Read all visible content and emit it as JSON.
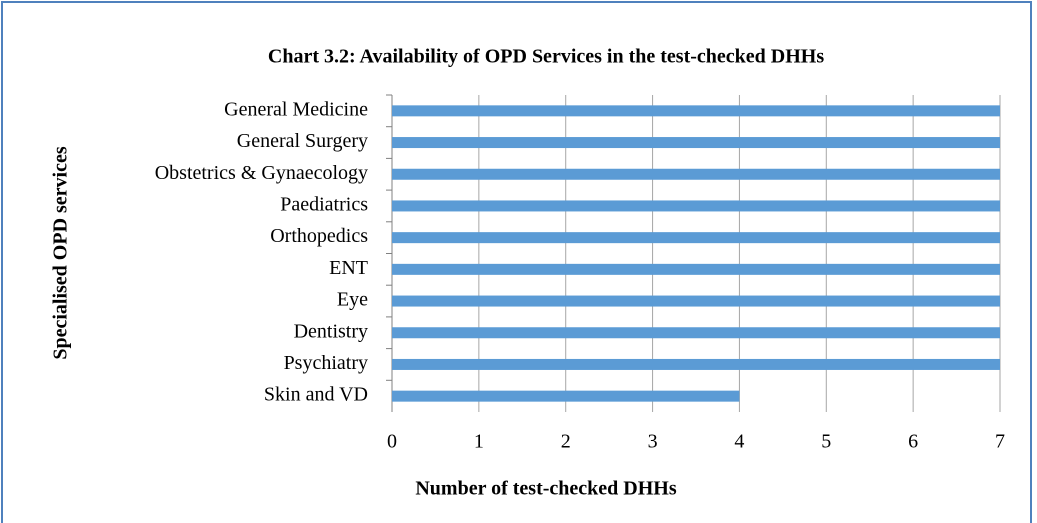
{
  "chart_data": {
    "type": "bar",
    "orientation": "horizontal",
    "title": "Chart 3.2: Availability of OPD Services in the test-checked DHHs",
    "x_label": "Number of test-checked DHHs",
    "y_label": "Specialised OPD services",
    "categories": [
      "General Medicine",
      "General Surgery",
      "Obstetrics & Gynaecology",
      "Paediatrics",
      "Orthopedics",
      "ENT",
      "Eye",
      "Dentistry",
      "Psychiatry",
      "Skin and VD"
    ],
    "values": [
      7,
      7,
      7,
      7,
      7,
      7,
      7,
      7,
      7,
      4
    ],
    "color": "#5b9bd5",
    "xlim": [
      0,
      7
    ],
    "xticks": [
      0,
      1,
      2,
      3,
      4,
      5,
      6,
      7
    ],
    "grid": true
  }
}
